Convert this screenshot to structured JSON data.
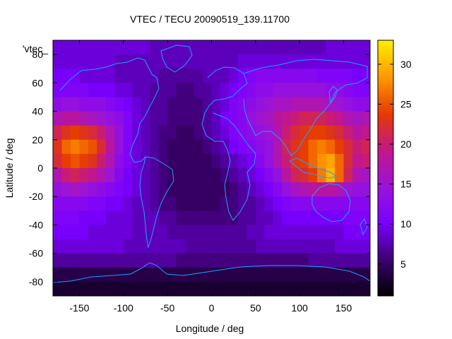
{
  "chart_data": {
    "type": "heatmap",
    "title": "VTEC / TECU 20090519_139.11700",
    "xlabel": "Longitude / deg",
    "ylabel": "Latitude / deg",
    "key_label": "'vtec_",
    "xlim": [
      -180,
      180
    ],
    "ylim": [
      -90,
      90
    ],
    "xticks": [
      -150,
      -100,
      -50,
      0,
      50,
      100,
      150
    ],
    "yticks": [
      -80,
      -60,
      -40,
      -20,
      0,
      20,
      40,
      60,
      80
    ],
    "colorbar": {
      "range": [
        1,
        33
      ],
      "ticks": [
        5,
        10,
        15,
        20,
        25,
        30
      ]
    },
    "palette": [
      "#000000",
      "#3c0070",
      "#7a00ff",
      "#9a14d8",
      "#c2168a",
      "#e63a00",
      "#ff9a00",
      "#ffee00"
    ],
    "coastline_color": "#1ea0ff",
    "lon": [
      -175,
      -165,
      -155,
      -145,
      -135,
      -125,
      -115,
      -105,
      -95,
      -85,
      -75,
      -65,
      -55,
      -45,
      -35,
      -25,
      -15,
      -5,
      5,
      15,
      25,
      35,
      45,
      55,
      65,
      75,
      85,
      95,
      105,
      115,
      125,
      135,
      145,
      155,
      165,
      175
    ],
    "lat": [
      85,
      75,
      65,
      55,
      45,
      35,
      25,
      15,
      5,
      -5,
      -15,
      -25,
      -35,
      -45,
      -55,
      -65,
      -75,
      -85
    ],
    "vtec": [
      [
        9,
        9,
        9,
        9,
        9,
        9,
        9,
        9,
        9,
        9,
        9,
        8,
        8,
        8,
        8,
        8,
        8,
        8,
        8,
        8,
        8,
        8,
        8,
        8,
        8,
        8,
        8,
        8,
        8,
        8,
        8,
        9,
        9,
        9,
        9,
        9
      ],
      [
        9,
        9,
        9,
        9,
        9,
        9,
        9,
        8,
        8,
        8,
        8,
        8,
        8,
        8,
        8,
        8,
        8,
        8,
        8,
        8,
        8,
        9,
        9,
        9,
        9,
        9,
        9,
        9,
        9,
        9,
        9,
        9,
        9,
        9,
        9,
        9
      ],
      [
        10,
        10,
        10,
        9,
        9,
        9,
        9,
        8,
        8,
        8,
        8,
        8,
        7,
        7,
        7,
        7,
        7,
        8,
        8,
        8,
        9,
        10,
        11,
        12,
        12,
        12,
        12,
        12,
        12,
        12,
        11,
        11,
        11,
        11,
        10,
        10
      ],
      [
        11,
        11,
        11,
        11,
        10,
        10,
        10,
        9,
        9,
        8,
        8,
        7,
        7,
        7,
        6,
        6,
        7,
        7,
        8,
        9,
        10,
        11,
        12,
        13,
        13,
        14,
        14,
        14,
        14,
        14,
        14,
        13,
        13,
        12,
        11,
        11
      ],
      [
        13,
        14,
        14,
        13,
        13,
        13,
        12,
        11,
        10,
        9,
        8,
        7,
        7,
        6,
        6,
        6,
        6,
        7,
        8,
        9,
        11,
        12,
        13,
        14,
        15,
        16,
        16,
        17,
        17,
        17,
        17,
        16,
        15,
        14,
        13,
        13
      ],
      [
        17,
        18,
        18,
        17,
        16,
        15,
        14,
        13,
        11,
        9,
        8,
        7,
        7,
        6,
        6,
        6,
        6,
        7,
        8,
        10,
        11,
        12,
        14,
        15,
        16,
        18,
        19,
        20,
        21,
        21,
        21,
        20,
        19,
        17,
        16,
        17
      ],
      [
        21,
        23,
        24,
        23,
        22,
        20,
        17,
        14,
        11,
        9,
        8,
        7,
        6,
        6,
        5,
        5,
        6,
        7,
        8,
        9,
        11,
        12,
        13,
        14,
        15,
        17,
        20,
        22,
        23,
        24,
        24,
        23,
        22,
        20,
        18,
        19
      ],
      [
        23,
        26,
        27,
        26,
        25,
        22,
        18,
        14,
        11,
        9,
        8,
        7,
        6,
        5,
        5,
        5,
        5,
        6,
        7,
        8,
        10,
        11,
        12,
        13,
        14,
        17,
        21,
        23,
        24,
        26,
        27,
        26,
        24,
        22,
        20,
        21
      ],
      [
        22,
        24,
        25,
        24,
        23,
        20,
        17,
        13,
        11,
        9,
        8,
        7,
        6,
        5,
        5,
        5,
        5,
        5,
        6,
        7,
        8,
        9,
        10,
        12,
        14,
        17,
        20,
        23,
        24,
        26,
        28,
        29,
        26,
        22,
        19,
        20
      ],
      [
        17,
        20,
        21,
        20,
        19,
        17,
        15,
        12,
        10,
        9,
        8,
        7,
        6,
        5,
        5,
        5,
        5,
        5,
        5,
        6,
        7,
        8,
        9,
        10,
        12,
        14,
        18,
        21,
        22,
        24,
        27,
        30,
        26,
        21,
        17,
        16
      ],
      [
        14,
        15,
        16,
        15,
        14,
        13,
        12,
        11,
        10,
        9,
        8,
        7,
        6,
        5,
        5,
        5,
        5,
        5,
        5,
        5,
        6,
        7,
        8,
        9,
        10,
        12,
        14,
        16,
        17,
        18,
        18,
        18,
        17,
        15,
        14,
        14
      ],
      [
        12,
        12,
        12,
        12,
        11,
        11,
        10,
        10,
        9,
        8,
        8,
        7,
        6,
        6,
        5,
        5,
        5,
        5,
        5,
        6,
        6,
        7,
        7,
        8,
        9,
        10,
        11,
        12,
        12,
        12,
        12,
        12,
        12,
        12,
        12,
        12
      ],
      [
        11,
        11,
        11,
        10,
        10,
        10,
        9,
        9,
        9,
        8,
        8,
        8,
        7,
        7,
        6,
        6,
        6,
        6,
        6,
        6,
        6,
        7,
        7,
        8,
        8,
        9,
        10,
        10,
        10,
        10,
        10,
        10,
        10,
        11,
        11,
        11
      ],
      [
        10,
        10,
        10,
        10,
        9,
        9,
        9,
        9,
        9,
        8,
        8,
        8,
        8,
        7,
        7,
        7,
        7,
        7,
        7,
        7,
        7,
        7,
        8,
        8,
        9,
        9,
        9,
        9,
        9,
        9,
        9,
        9,
        9,
        10,
        10,
        10
      ],
      [
        9,
        9,
        9,
        9,
        9,
        9,
        9,
        9,
        8,
        8,
        8,
        8,
        8,
        8,
        8,
        7,
        7,
        7,
        7,
        7,
        7,
        7,
        7,
        8,
        8,
        8,
        8,
        8,
        8,
        8,
        8,
        8,
        9,
        9,
        9,
        9
      ],
      [
        7,
        7,
        7,
        7,
        7,
        7,
        7,
        7,
        7,
        7,
        7,
        7,
        7,
        7,
        6,
        6,
        6,
        6,
        6,
        6,
        6,
        6,
        6,
        6,
        6,
        6,
        6,
        6,
        6,
        7,
        7,
        7,
        7,
        7,
        7,
        7
      ],
      [
        4,
        4,
        4,
        4,
        4,
        4,
        4,
        4,
        4,
        4,
        4,
        4,
        4,
        4,
        4,
        4,
        4,
        4,
        4,
        4,
        4,
        4,
        4,
        4,
        4,
        4,
        4,
        4,
        4,
        4,
        4,
        4,
        4,
        4,
        4,
        4
      ],
      [
        3,
        3,
        3,
        3,
        3,
        3,
        3,
        3,
        3,
        3,
        3,
        3,
        3,
        3,
        3,
        3,
        3,
        3,
        3,
        3,
        3,
        3,
        3,
        3,
        3,
        3,
        3,
        3,
        3,
        3,
        3,
        3,
        3,
        3,
        3,
        3
      ]
    ]
  }
}
